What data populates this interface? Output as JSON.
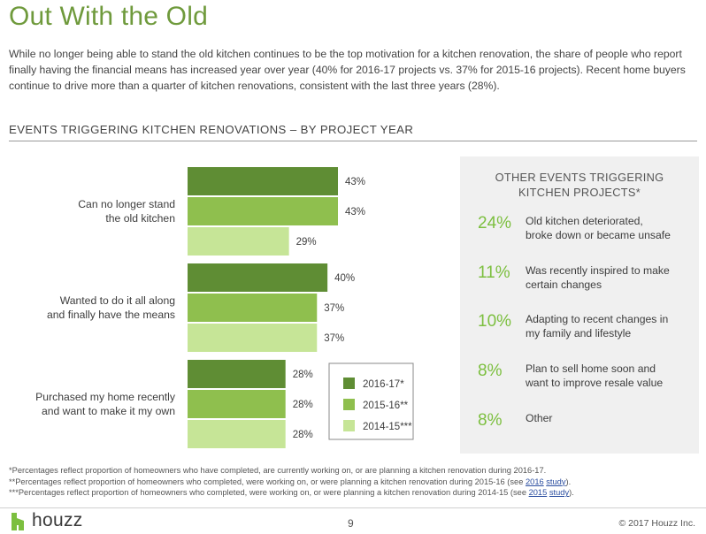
{
  "header": {
    "title": "Out With the Old",
    "intro": "While no longer being able to stand the old kitchen continues to be the top motivation for a kitchen renovation, the share of people who report finally having the financial means has increased year over year (40% for 2016-17 projects vs. 37% for 2015-16 projects). Recent home buyers continue to drive more than a quarter of kitchen renovations, consistent with the last three years (28%)."
  },
  "section_title": "EVENTS TRIGGERING KITCHEN RENOVATIONS – BY PROJECT YEAR",
  "chart_data": {
    "type": "bar",
    "orientation": "horizontal",
    "title": "EVENTS TRIGGERING KITCHEN RENOVATIONS – BY PROJECT YEAR",
    "categories": [
      [
        "Can no longer stand",
        "the old kitchen"
      ],
      [
        "Wanted to do it all along",
        "and finally have the means"
      ],
      [
        "Purchased my home recently",
        "and want to make it my own"
      ]
    ],
    "series": [
      {
        "name": "2016-17*",
        "color": "#5f8d34",
        "values": [
          43,
          40,
          28
        ]
      },
      {
        "name": "2015-16**",
        "color": "#8fbf4e",
        "values": [
          43,
          37,
          28
        ]
      },
      {
        "name": "2014-15***",
        "color": "#c6e597",
        "values": [
          29,
          37,
          28
        ]
      }
    ],
    "value_suffix": "%",
    "xlim": [
      0,
      43
    ],
    "grid": false,
    "legend_position": "bottom-right",
    "data_labels": true
  },
  "sidebar": {
    "title_line1": "OTHER EVENTS TRIGGERING",
    "title_line2": "KITCHEN PROJECTS*",
    "accent_color": "#7cbf3f",
    "items": [
      {
        "pct": "24%",
        "line1": "Old kitchen deteriorated,",
        "line2": "broke down or became unsafe"
      },
      {
        "pct": "11%",
        "line1": "Was recently inspired to make",
        "line2": "certain changes"
      },
      {
        "pct": "10%",
        "line1": "Adapting to recent changes in",
        "line2": "my family and lifestyle"
      },
      {
        "pct": "8%",
        "line1": "Plan to sell home soon and",
        "line2": "want to improve resale value"
      },
      {
        "pct": "8%",
        "line1": "Other",
        "line2": ""
      }
    ]
  },
  "footnotes": {
    "note1": "*Percentages reflect proportion of homeowners who have completed, are currently working on, or are planning a kitchen renovation during 2016-17.",
    "note2_pre": "**Percentages reflect proportion of homeowners who completed, were working on, or were planning a kitchen renovation during 2015-16 (see ",
    "note2_link_year": "2016",
    "note2_link_word": "study",
    "note2_post": ").",
    "note3_pre": "***Percentages reflect proportion of homeowners who completed, were working on, or were planning a kitchen renovation during 2014-15 (see ",
    "note3_link_year": "2015",
    "note3_link_word": "study",
    "note3_post": ")."
  },
  "footer": {
    "brand": "houzz",
    "page_number": "9",
    "copyright": "© 2017 Houzz Inc."
  }
}
